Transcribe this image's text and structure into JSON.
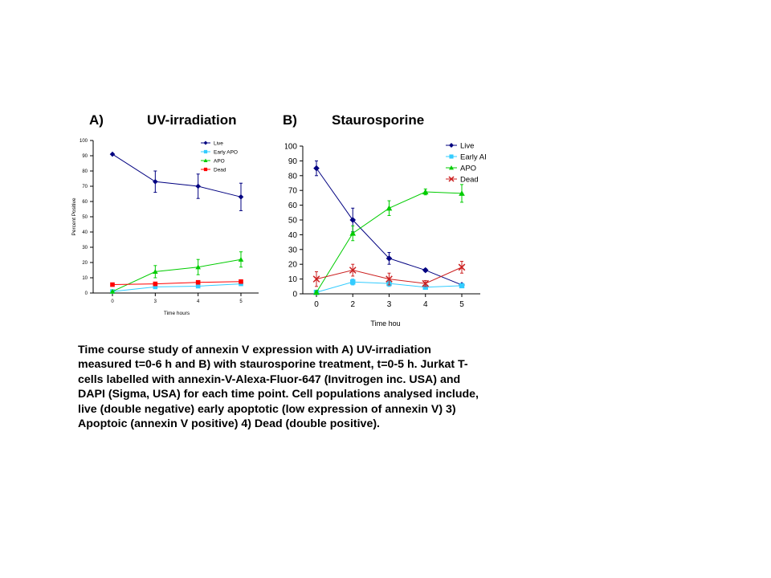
{
  "panels": {
    "a": {
      "label": "A)",
      "title": "UV-irradiation"
    },
    "b": {
      "label": "B)",
      "title": "Staurosporine"
    }
  },
  "caption": "Time course study of annexin V expression with A) UV-irradiation measured t=0-6 h and B) with staurosporine treatment, t=0-5 h. Jurkat T-cells labelled with annexin-V-Alexa-Fluor-647 (Invitrogen inc. USA) and DAPI (Sigma, USA) for each time point. Cell populations analysed include, live (double negative) early apoptotic (low expression of annexin V)  3) Apoptoic (annexin V positive) 4) Dead (double positive).",
  "chart_data": [
    {
      "type": "line",
      "title": "UV-irradiation",
      "xlabel": "Time hours",
      "ylabel": "Percent Positive",
      "categories": [
        "0",
        "3",
        "4",
        "5"
      ],
      "ylim": [
        0,
        100
      ],
      "yticks": [
        0,
        10,
        20,
        30,
        40,
        50,
        60,
        70,
        80,
        90,
        100
      ],
      "grid": false,
      "legend_position": "top-right",
      "series": [
        {
          "name": "Live",
          "color": "#000080",
          "marker": "diamond",
          "values": [
            91,
            73,
            70,
            63
          ],
          "errors": [
            0,
            7,
            8,
            9
          ]
        },
        {
          "name": "Early APO",
          "color": "#33ccff",
          "marker": "square",
          "values": [
            1,
            4,
            4.5,
            6
          ],
          "errors": [
            0,
            1,
            1,
            1
          ]
        },
        {
          "name": "APO",
          "color": "#00cc00",
          "marker": "triangle",
          "values": [
            1,
            14,
            17,
            22
          ],
          "errors": [
            0,
            4,
            5,
            5
          ]
        },
        {
          "name": "Dead",
          "color": "#ff0000",
          "marker": "square",
          "values": [
            5.5,
            6,
            7,
            7.5
          ],
          "errors": [
            0,
            0,
            0,
            0
          ]
        }
      ]
    },
    {
      "type": "line",
      "title": "Staurosporine",
      "xlabel": "Time hou",
      "ylabel": "",
      "categories": [
        "0",
        "2",
        "3",
        "4",
        "5"
      ],
      "ylim": [
        0,
        100
      ],
      "yticks": [
        0,
        10,
        20,
        30,
        40,
        50,
        60,
        70,
        80,
        90,
        100
      ],
      "grid": false,
      "legend_position": "top-right",
      "series": [
        {
          "name": "Live",
          "color": "#000080",
          "marker": "diamond",
          "values": [
            85,
            50,
            24,
            16,
            6
          ],
          "errors": [
            5,
            8,
            4,
            1,
            1
          ]
        },
        {
          "name": "Early AI",
          "color": "#33ccff",
          "marker": "square",
          "values": [
            1,
            8,
            7,
            4.5,
            5.5
          ],
          "errors": [
            1,
            2,
            2,
            1,
            1
          ]
        },
        {
          "name": "APO",
          "color": "#00cc00",
          "marker": "triangle",
          "values": [
            1,
            41,
            58,
            69,
            68
          ],
          "errors": [
            1,
            5,
            5,
            2,
            6
          ]
        },
        {
          "name": "Dead",
          "color": "#cc2020",
          "marker": "x",
          "values": [
            10,
            16,
            10,
            7,
            18
          ],
          "errors": [
            5,
            4,
            4,
            2,
            4
          ]
        }
      ]
    }
  ]
}
